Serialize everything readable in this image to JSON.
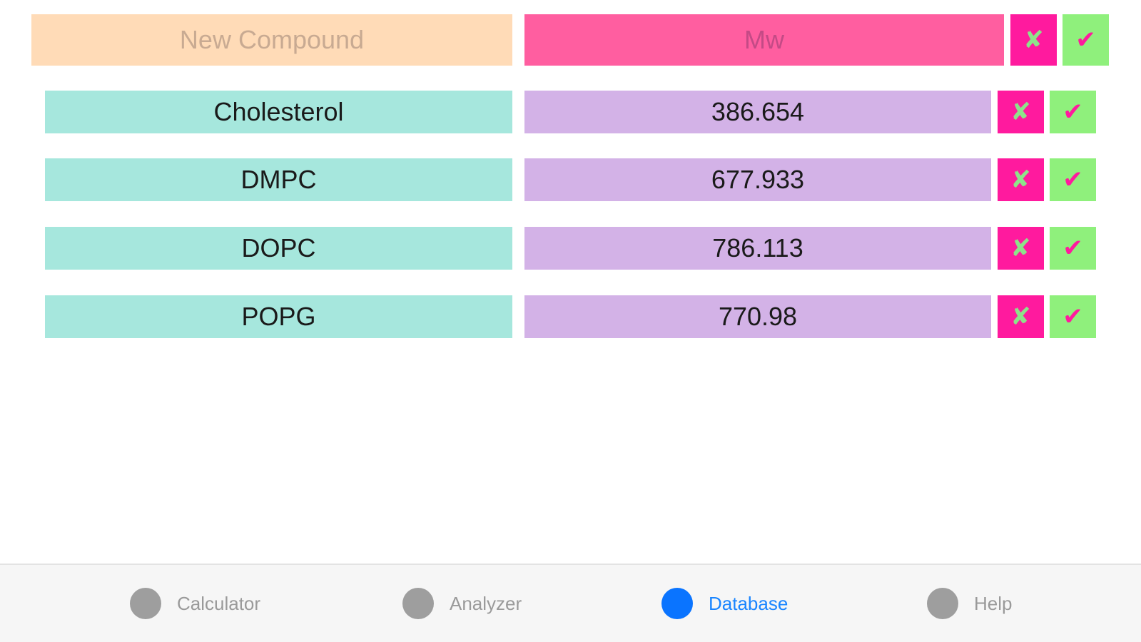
{
  "new_entry": {
    "name_placeholder": "New Compound",
    "mw_placeholder": "Mw",
    "cancel_glyph": "✘",
    "confirm_glyph": "✔"
  },
  "compounds": [
    {
      "name": "Cholesterol",
      "mw": "386.654"
    },
    {
      "name": "DMPC",
      "mw": "677.933"
    },
    {
      "name": "DOPC",
      "mw": "786.113"
    },
    {
      "name": "POPG",
      "mw": "770.98"
    }
  ],
  "row_actions": {
    "delete_glyph": "✘",
    "save_glyph": "✔"
  },
  "tabs": [
    {
      "label": "Calculator",
      "icon": "circle-icon",
      "active": false
    },
    {
      "label": "Analyzer",
      "icon": "circle-icon",
      "active": false
    },
    {
      "label": "Database",
      "icon": "circle-icon",
      "active": true
    },
    {
      "label": "Help",
      "icon": "circle-icon",
      "active": false
    }
  ],
  "colors": {
    "new_name_bg": "#ffdbb7",
    "mw_input_bg": "#ff5ea0",
    "name_cell_bg": "#a6e7dd",
    "mw_cell_bg": "#d3b2e7",
    "delete_bg": "#ff1a9e",
    "confirm_bg": "#8ff07c",
    "active_tab": "#0a74ff",
    "inactive_tab": "#9e9e9e"
  }
}
